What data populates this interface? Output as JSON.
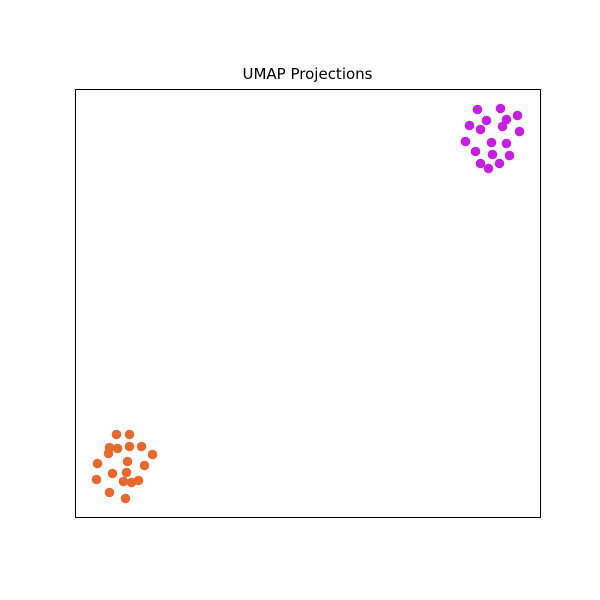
{
  "chart_data": {
    "type": "scatter",
    "title": "UMAP Projections",
    "xlabel": "",
    "ylabel": "",
    "xlim": [
      0,
      465
    ],
    "ylim": [
      0,
      428
    ],
    "grid": false,
    "axis_ticks": false,
    "legend": "none",
    "series": [
      {
        "color": "#e8692d",
        "points": [
          [
            41,
            83
          ],
          [
            54,
            83
          ],
          [
            34,
            70
          ],
          [
            42,
            69
          ],
          [
            54,
            71
          ],
          [
            66,
            71
          ],
          [
            77,
            63
          ],
          [
            33,
            64
          ],
          [
            22,
            54
          ],
          [
            52,
            56
          ],
          [
            69,
            52
          ],
          [
            37,
            44
          ],
          [
            51,
            45
          ],
          [
            21,
            38
          ],
          [
            48,
            36
          ],
          [
            56,
            35
          ],
          [
            63,
            37
          ],
          [
            34,
            25
          ],
          [
            50,
            19
          ]
        ]
      },
      {
        "color": "#c51fe0",
        "points": [
          [
            402,
            408
          ],
          [
            425,
            409
          ],
          [
            442,
            402
          ],
          [
            411,
            397
          ],
          [
            431,
            398
          ],
          [
            394,
            392
          ],
          [
            405,
            388
          ],
          [
            427,
            391
          ],
          [
            444,
            386
          ],
          [
            390,
            376
          ],
          [
            416,
            375
          ],
          [
            431,
            374
          ],
          [
            400,
            366
          ],
          [
            417,
            363
          ],
          [
            434,
            362
          ],
          [
            405,
            354
          ],
          [
            424,
            354
          ],
          [
            413,
            349
          ]
        ]
      }
    ]
  }
}
